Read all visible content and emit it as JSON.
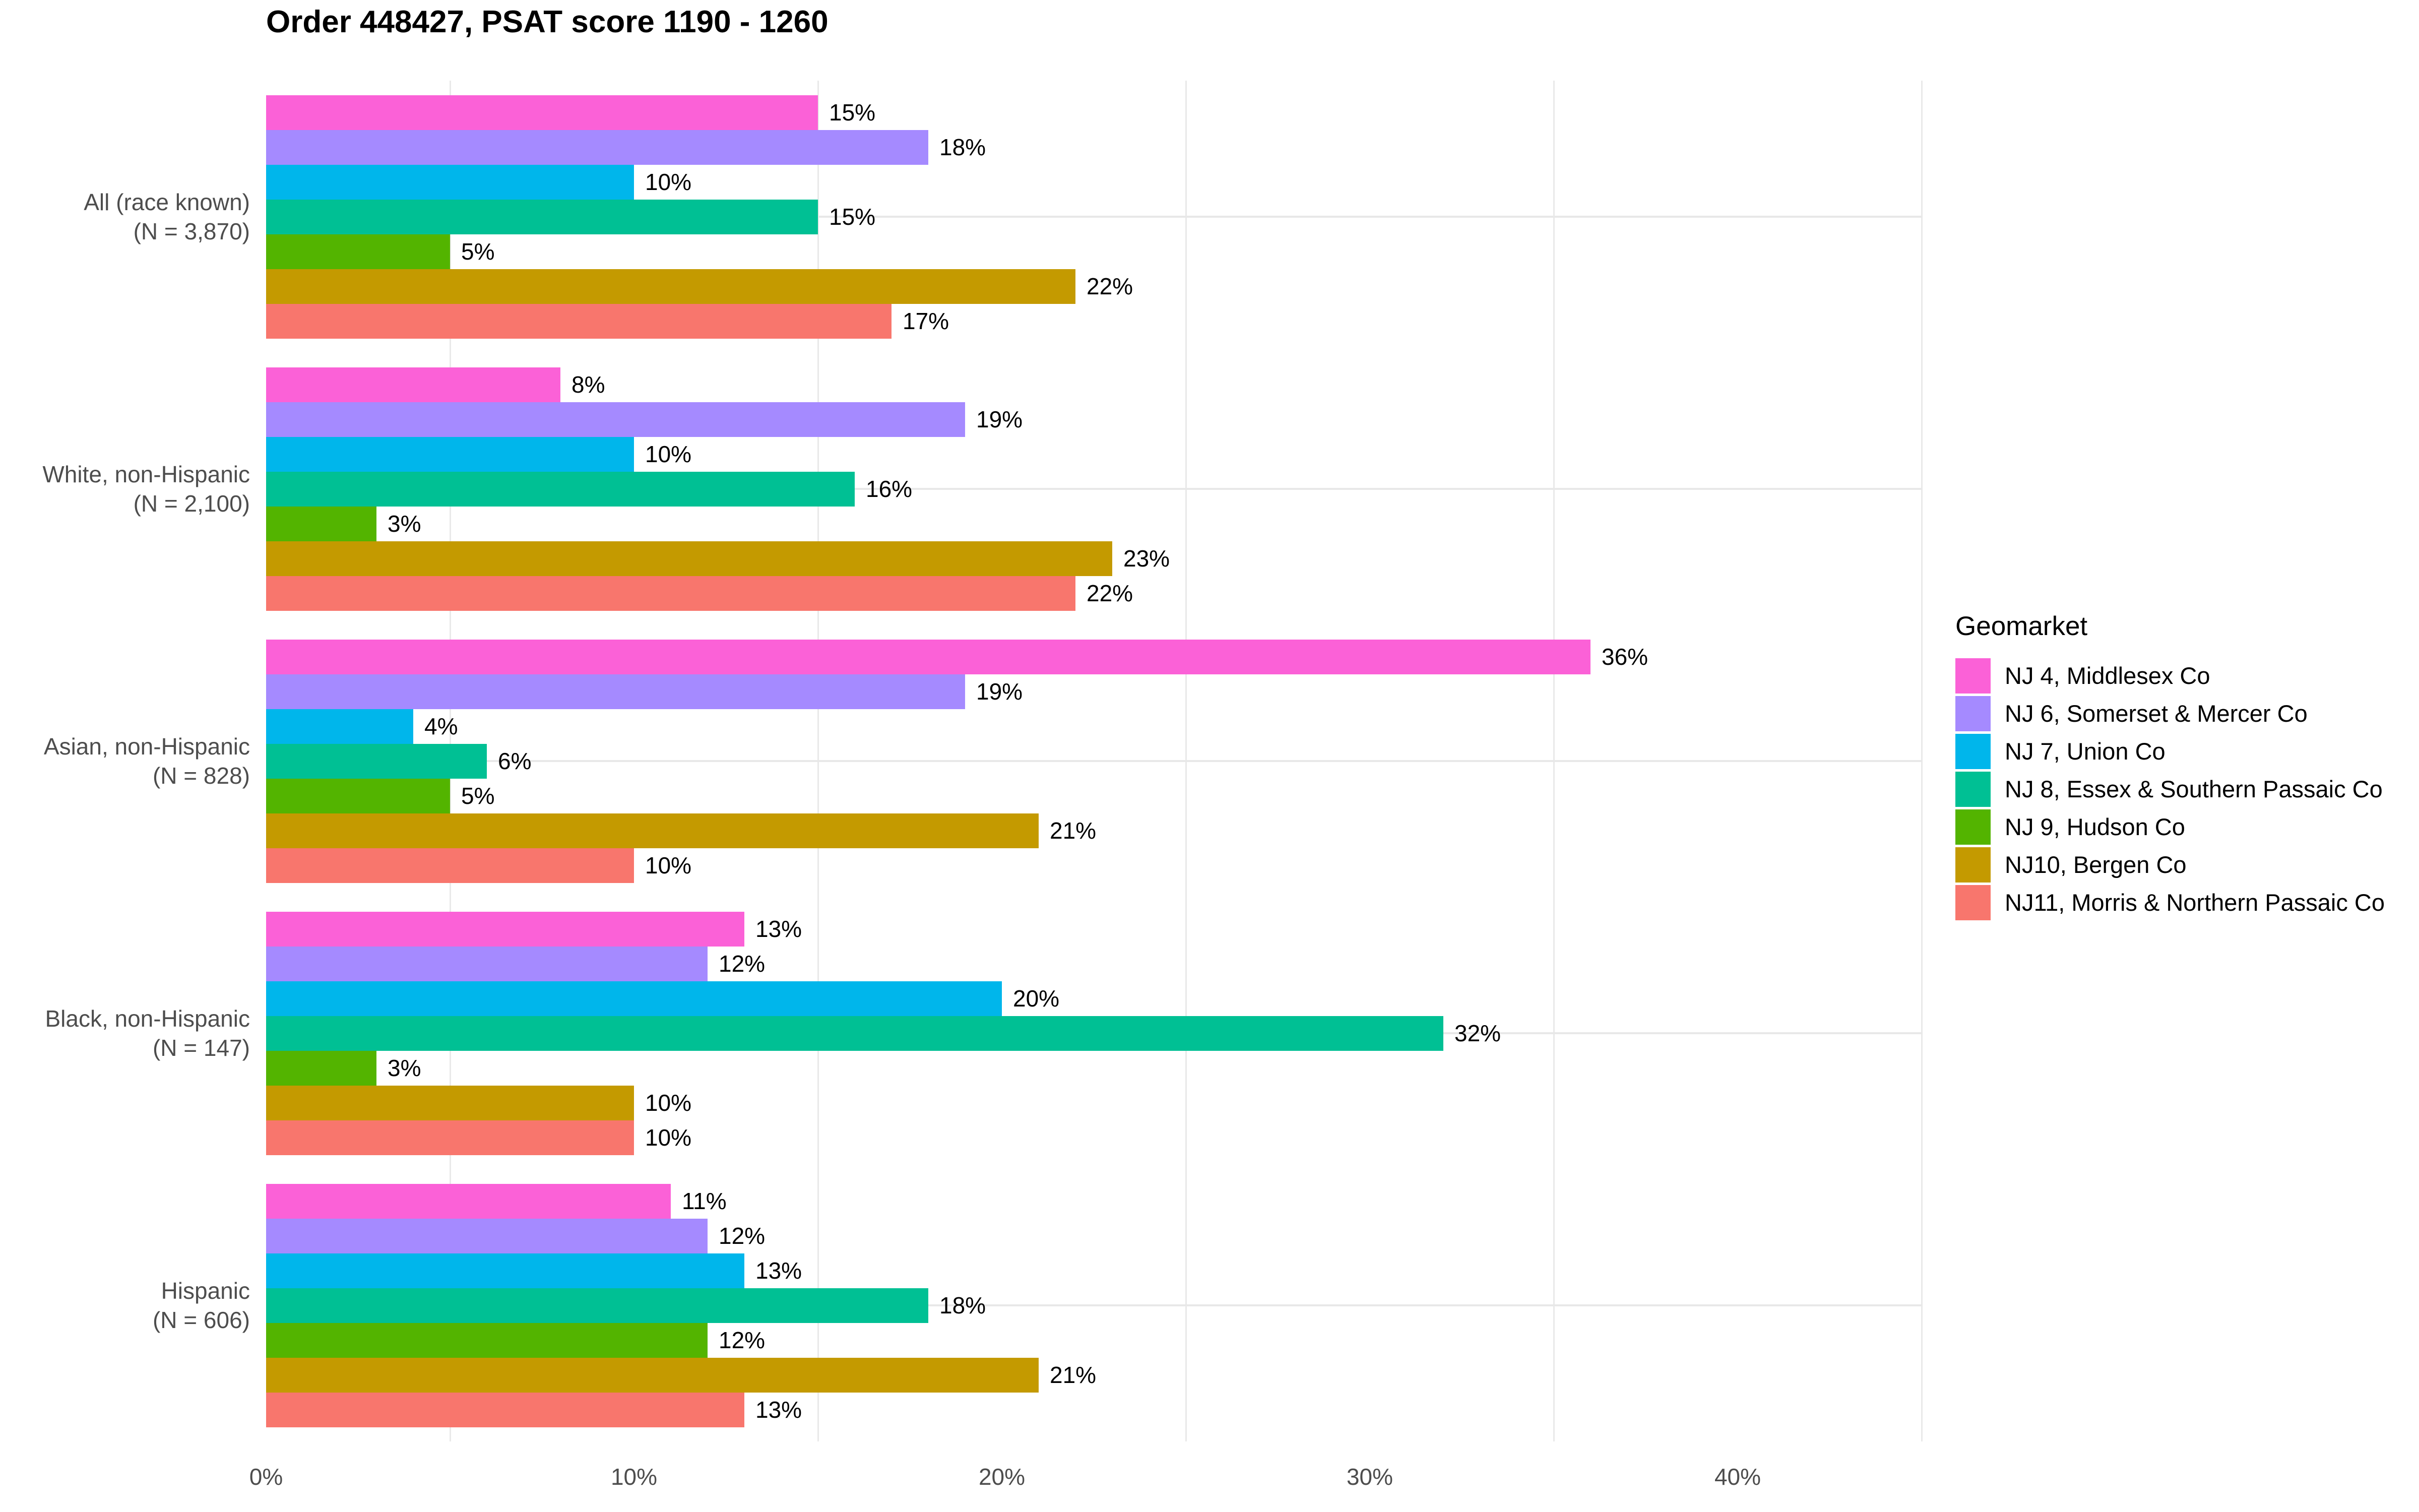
{
  "chart_data": {
    "type": "bar",
    "orientation": "horizontal",
    "title": "Order 448427, PSAT score 1190 - 1260",
    "legend_title": "Geomarket",
    "legend_position": "right",
    "categories": [
      "All (race known)\n(N = 3,870)",
      "White, non-Hispanic\n(N = 2,100)",
      "Asian, non-Hispanic\n(N = 828)",
      "Black, non-Hispanic\n(N = 147)",
      "Hispanic\n(N = 606)"
    ],
    "series": [
      {
        "name": "NJ 4, Middlesex Co",
        "color": "#FB61D7",
        "values": [
          15,
          8,
          36,
          13,
          11
        ]
      },
      {
        "name": "NJ 6, Somerset & Mercer Co",
        "color": "#A58AFF",
        "values": [
          18,
          19,
          19,
          12,
          12
        ]
      },
      {
        "name": "NJ 7, Union Co",
        "color": "#00B6EB",
        "values": [
          10,
          10,
          4,
          20,
          13
        ]
      },
      {
        "name": "NJ 8, Essex & Southern Passaic Co",
        "color": "#00C094",
        "values": [
          15,
          16,
          6,
          32,
          18
        ]
      },
      {
        "name": "NJ 9, Hudson Co",
        "color": "#53B400",
        "values": [
          5,
          3,
          5,
          3,
          12
        ]
      },
      {
        "name": "NJ10, Bergen Co",
        "color": "#C49A00",
        "values": [
          22,
          23,
          21,
          10,
          21
        ]
      },
      {
        "name": "NJ11, Morris & Northern Passaic Co",
        "color": "#F8766D",
        "values": [
          17,
          22,
          10,
          10,
          13
        ]
      }
    ],
    "value_label_suffix": "%",
    "xlabel": "",
    "ylabel": "",
    "x_ticks": [
      "0%",
      "10%",
      "20%",
      "30%",
      "40%"
    ],
    "x_tick_values": [
      0,
      10,
      20,
      30,
      40
    ],
    "xlim": [
      0,
      45
    ],
    "grid": {
      "vertical_lines_at": [
        5,
        15,
        25,
        35,
        45
      ],
      "horizontal_line_at_category_centers": true,
      "color": "#e8e8e8"
    }
  }
}
